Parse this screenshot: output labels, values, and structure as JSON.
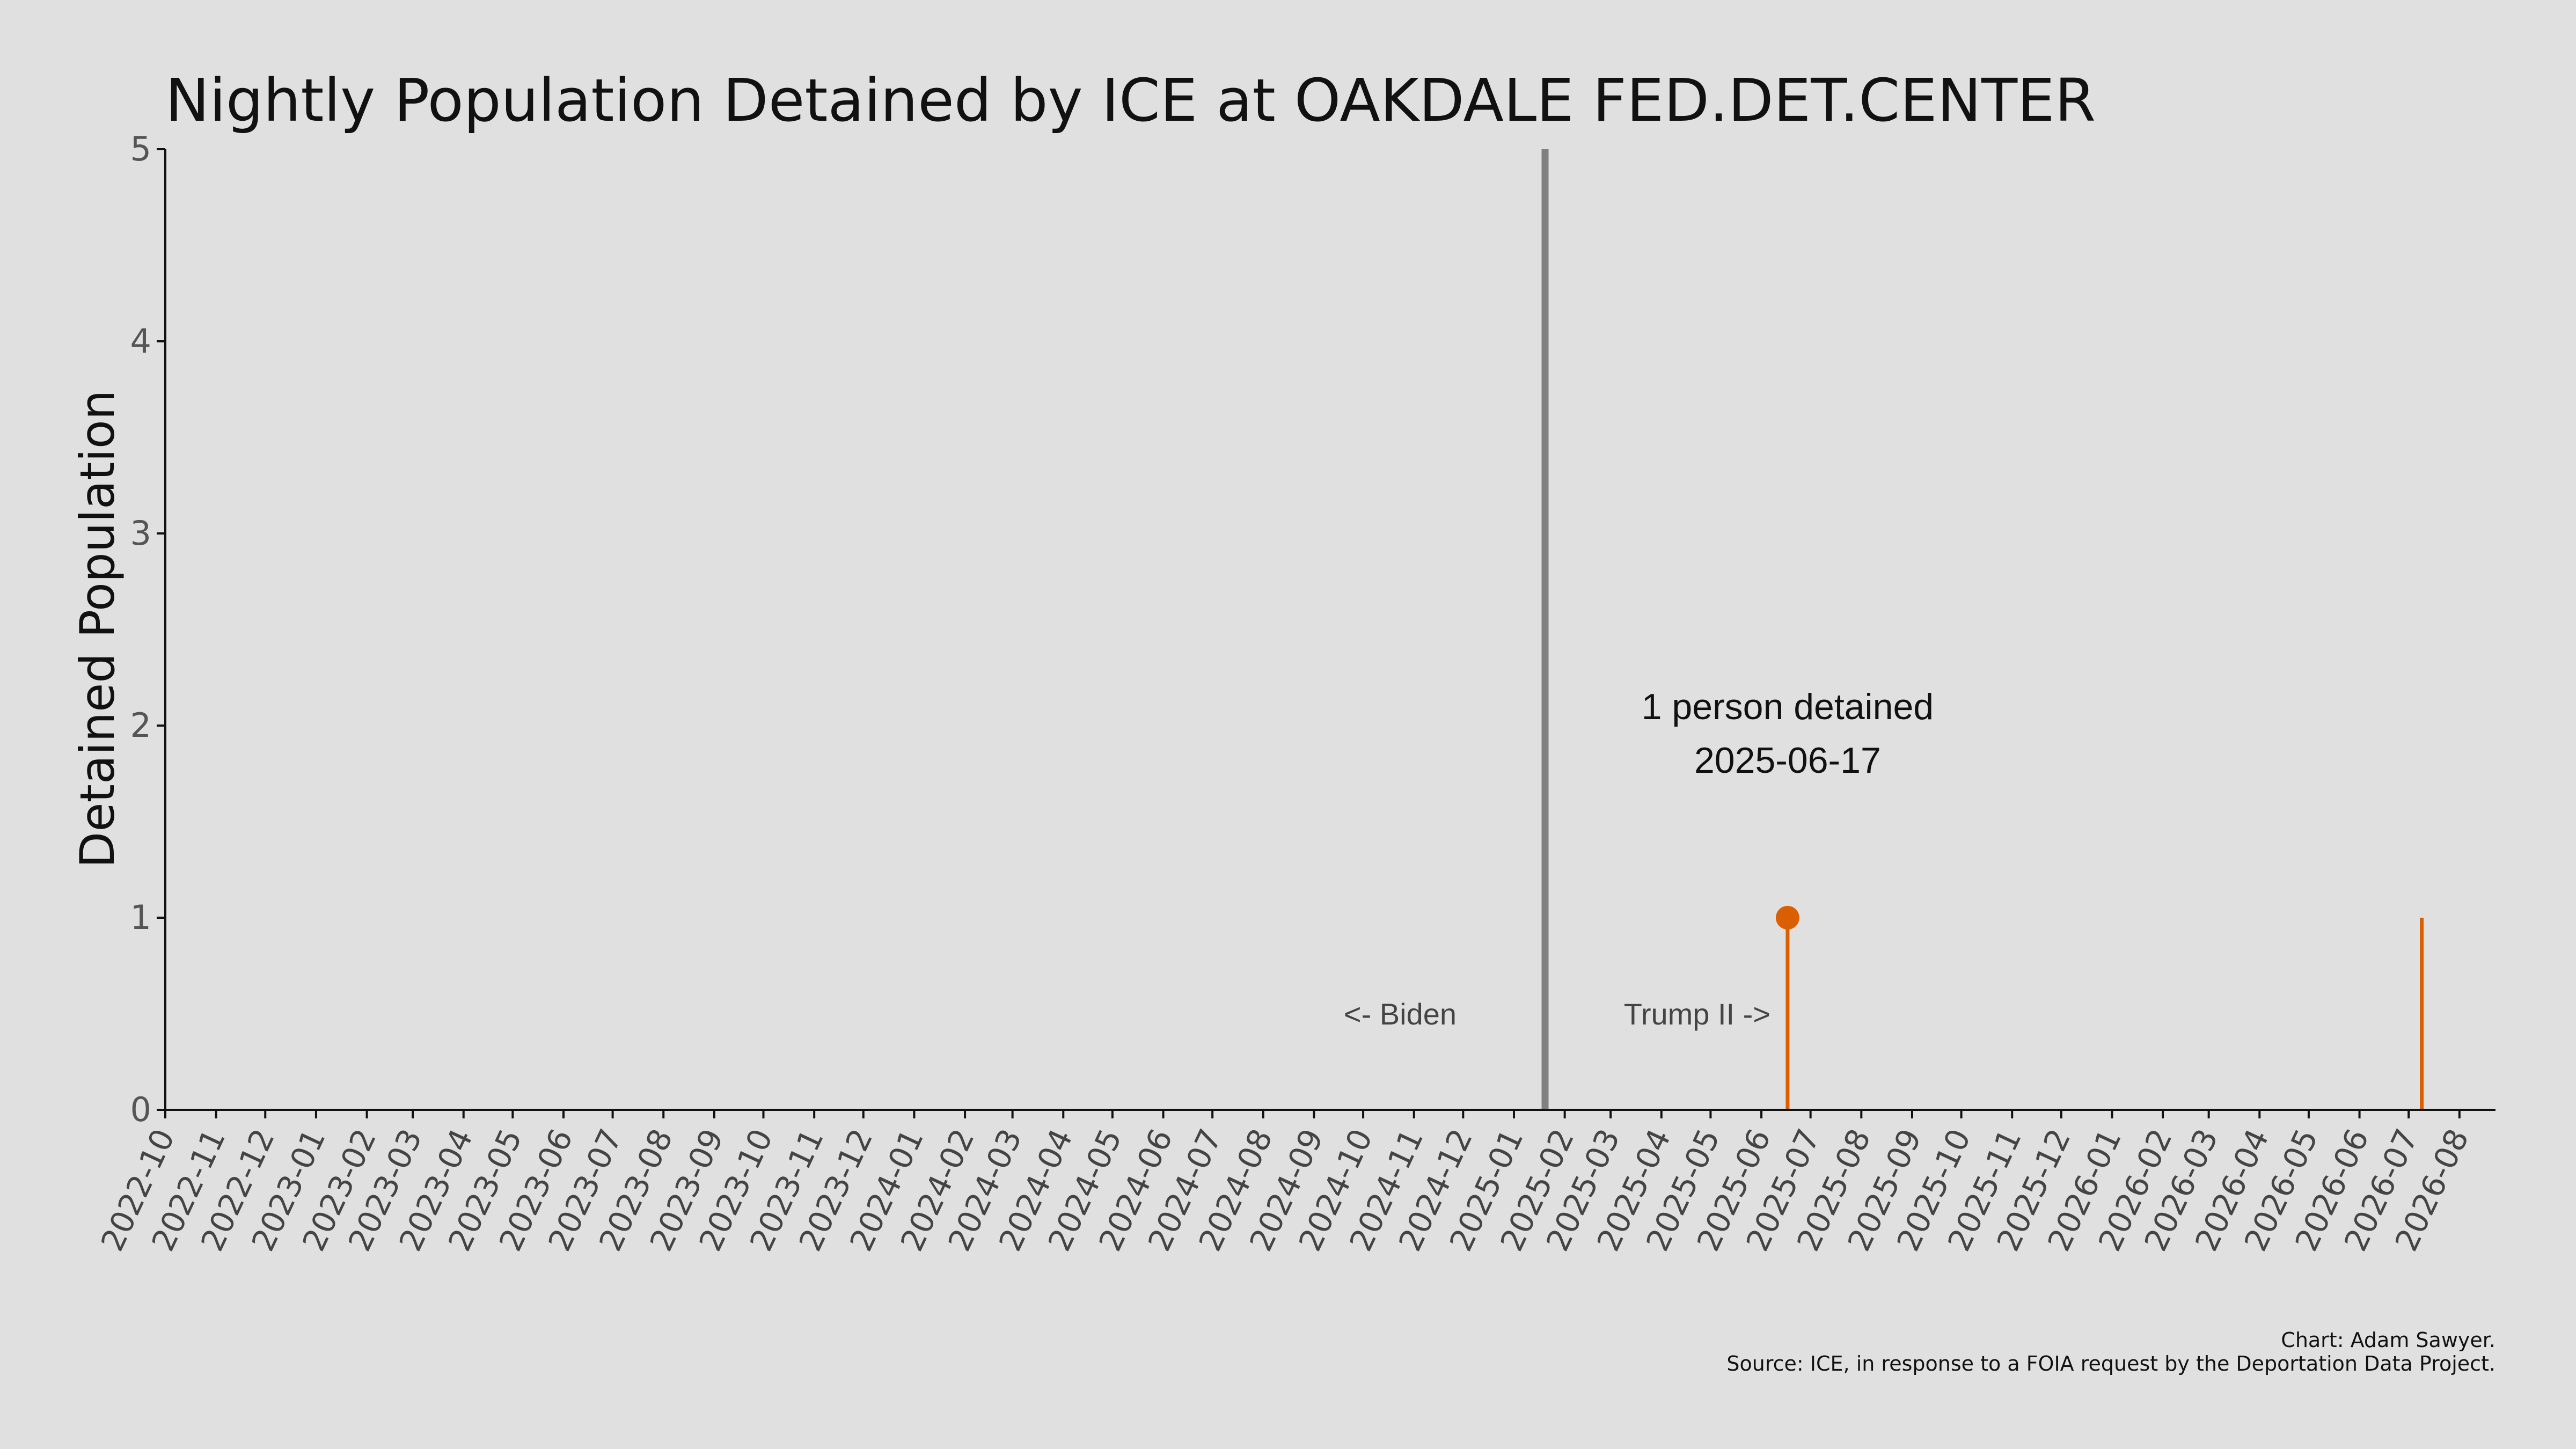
{
  "chart_data": {
    "type": "line",
    "title": "Nightly Population Detained by ICE at OAKDALE FED.DET.CENTER",
    "xlabel": "",
    "ylabel": "Detained Population",
    "x_range": [
      "2022-10-01",
      "2026-08-23"
    ],
    "ylim": [
      0,
      5
    ],
    "y_ticks": [
      0,
      1,
      2,
      3,
      4,
      5
    ],
    "x_ticks": [
      "2022-10",
      "2022-11",
      "2022-12",
      "2023-01",
      "2023-02",
      "2023-03",
      "2023-04",
      "2023-05",
      "2023-06",
      "2023-07",
      "2023-08",
      "2023-09",
      "2023-10",
      "2023-11",
      "2023-12",
      "2024-01",
      "2024-02",
      "2024-03",
      "2024-04",
      "2024-05",
      "2024-06",
      "2024-07",
      "2024-08",
      "2024-09",
      "2024-10",
      "2024-11",
      "2024-12",
      "2025-01",
      "2025-02",
      "2025-03",
      "2025-04",
      "2025-05",
      "2025-06",
      "2025-07",
      "2025-08",
      "2025-09",
      "2025-10",
      "2025-11",
      "2025-12",
      "2026-01",
      "2026-02",
      "2026-03",
      "2026-04",
      "2026-05",
      "2026-06",
      "2026-07",
      "2026-08"
    ],
    "grid": false,
    "color": "#d95f02",
    "divider_date": "2025-01-20",
    "series": [
      {
        "points": [
          {
            "date": "2025-06-17",
            "value": 1
          },
          {
            "date": "2026-07-09",
            "value": 1
          }
        ]
      }
    ],
    "highlight": {
      "date": "2025-06-17",
      "value": 1
    },
    "annotation": {
      "line1": "1 person detained",
      "line2": "2025-06-17"
    },
    "era_left": "<- Biden",
    "era_right": "Trump II ->"
  },
  "credits": {
    "chart": "Chart: Adam Sawyer.",
    "source": "Source: ICE, in response to a FOIA request by the Deportation Data Project."
  }
}
